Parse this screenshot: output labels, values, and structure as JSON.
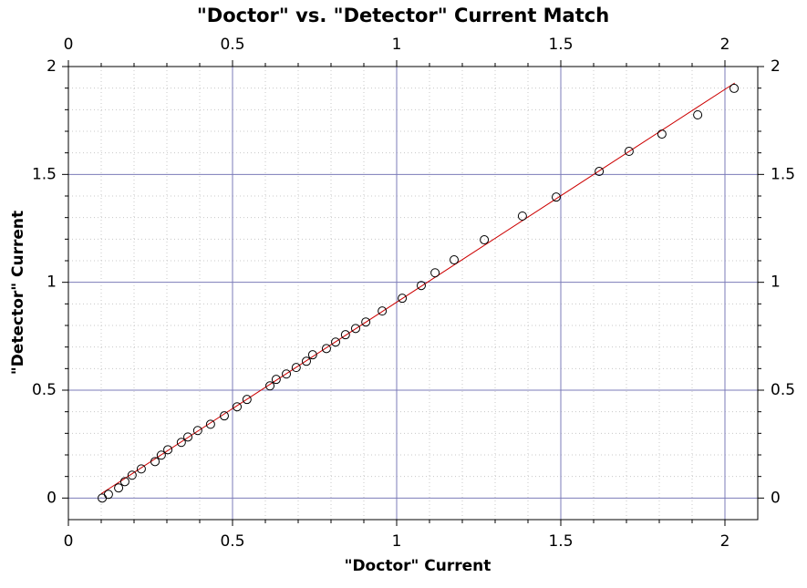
{
  "chart_data": {
    "type": "scatter",
    "title": "\"Doctor\" vs. \"Detector\" Current Match",
    "x_label": "\"Doctor\" Current",
    "y_label": "\"Detector\" Current",
    "series": [
      {
        "color": "#000000",
        "marker": "open-circle",
        "x": [
          0.103,
          0.122,
          0.153,
          0.172,
          0.194,
          0.222,
          0.264,
          0.283,
          0.303,
          0.344,
          0.364,
          0.394,
          0.433,
          0.475,
          0.514,
          0.544,
          0.614,
          0.633,
          0.664,
          0.694,
          0.725,
          0.744,
          0.786,
          0.814,
          0.844,
          0.875,
          0.906,
          0.956,
          1.017,
          1.075,
          1.117,
          1.175,
          1.267,
          1.383,
          1.486,
          1.617,
          1.708,
          1.808,
          1.917,
          2.028
        ],
        "values": [
          0.0,
          0.017,
          0.047,
          0.076,
          0.106,
          0.135,
          0.169,
          0.199,
          0.224,
          0.258,
          0.283,
          0.313,
          0.342,
          0.381,
          0.423,
          0.457,
          0.52,
          0.55,
          0.575,
          0.605,
          0.634,
          0.664,
          0.693,
          0.723,
          0.757,
          0.786,
          0.816,
          0.867,
          0.926,
          0.985,
          1.044,
          1.104,
          1.197,
          1.307,
          1.395,
          1.514,
          1.607,
          1.687,
          1.776,
          1.899
        ]
      },
      {
        "color": "#cc0000",
        "marker": "line",
        "x": [
          0.1,
          2.03
        ],
        "values": [
          0.02,
          1.924
        ]
      }
    ],
    "xlim": [
      0,
      2.1
    ],
    "ylim": [
      -0.1,
      2
    ],
    "xticks": [
      0,
      0.5,
      1,
      1.5,
      2
    ],
    "yticks": [
      0,
      0.5,
      1,
      1.5,
      2
    ],
    "minor_xticks": [
      0.1,
      0.2,
      0.3,
      0.4,
      0.6,
      0.7,
      0.8,
      0.9,
      1.1,
      1.2,
      1.3,
      1.4,
      1.6,
      1.7,
      1.8,
      1.9
    ],
    "minor_yticks": [
      0.1,
      0.2,
      0.3,
      0.4,
      0.6,
      0.7,
      0.8,
      0.9,
      1.1,
      1.2,
      1.3,
      1.4,
      1.6,
      1.7,
      1.8,
      1.9
    ],
    "grid": true,
    "mirror_axes": true
  }
}
